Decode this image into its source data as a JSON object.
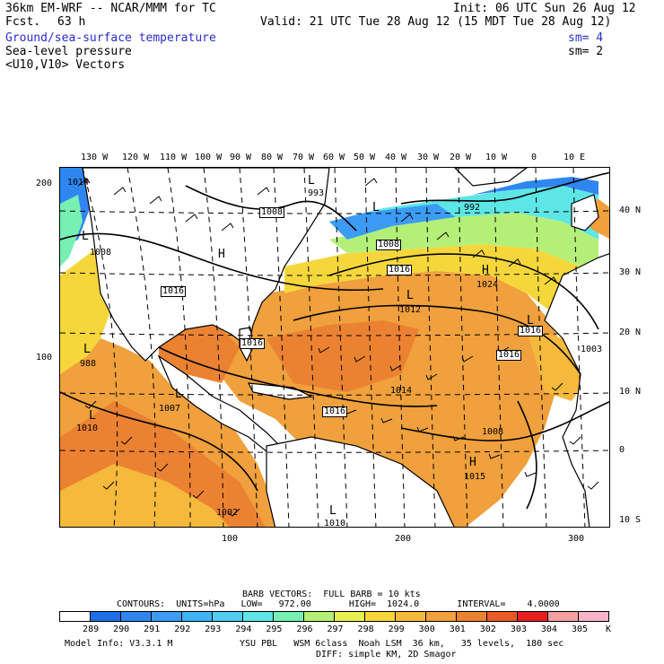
{
  "header": {
    "model": "36km EM-WRF -- NCAR/MMM for TC",
    "fcst_label": "Fcst.",
    "fcst_value": "63 h",
    "init": "Init: 06 UTC Sun 26 Aug 12",
    "valid": "Valid: 21 UTC Tue 28 Aug 12 (15 MDT Tue 28 Aug 12)",
    "fields": [
      {
        "label": "Ground/sea-surface temperature",
        "sm": "sm= 4",
        "color": "#2b2bd0"
      },
      {
        "label": "Sea-level pressure",
        "sm": "sm= 2",
        "color": "#000000"
      },
      {
        "label": "<U10,V10> Vectors",
        "sm": "",
        "color": "#000000"
      }
    ]
  },
  "map": {
    "top_lon_labels": [
      "130 W",
      "120 W",
      "110 W",
      "100 W",
      "90 W",
      "80 W",
      "70 W",
      "60 W",
      "50 W",
      "40 W",
      "30 W",
      "20 W",
      "10 W",
      "0",
      "10 E"
    ],
    "right_lat_labels": [
      "40 N",
      "30 N",
      "20 N",
      "10 N",
      "0",
      "10 S"
    ],
    "left_grid_labels": [
      "200",
      "100"
    ],
    "bottom_grid_labels": [
      "100",
      "200",
      "300"
    ],
    "isobar_labels": [
      "1014",
      "1008",
      "1008",
      "993",
      "992",
      "1016",
      "1008",
      "1016",
      "1024",
      "1012",
      "1016",
      "1016",
      "1016",
      "1003",
      "988",
      "1014",
      "1016",
      "1010",
      "1007",
      "1008",
      "1015",
      "1002",
      "1010"
    ],
    "highs_lows": [
      "L",
      "L",
      "L",
      "H",
      "L",
      "L",
      "L",
      "L",
      "H",
      "H",
      "L",
      "L"
    ]
  },
  "footer": {
    "barb_line": "BARB VECTORS:  FULL BARB = 10 kts",
    "contours_line": "CONTOURS:  UNITS=hPa   LOW=   972.00       HIGH=  1024.0       INTERVAL=    4.0000",
    "colorbar_labels": [
      "289",
      "290",
      "291",
      "292",
      "293",
      "294",
      "295",
      "296",
      "297",
      "298",
      "299",
      "300",
      "301",
      "302",
      "303",
      "304",
      "305"
    ],
    "colorbar_unit": "K",
    "colorbar_colors": [
      "#ffffff",
      "#1e6ee6",
      "#2f86f0",
      "#3c9cf5",
      "#3cb4f5",
      "#50cdf0",
      "#5ee6e6",
      "#78f0b4",
      "#b4f078",
      "#e6f050",
      "#f5d73c",
      "#f5b93c",
      "#f0a03c",
      "#eb8232",
      "#eb5a28",
      "#e61e1e",
      "#f5a0a0",
      "#f5b4c8"
    ],
    "model_info": "Model Info: V3.3.1 M",
    "physics": "YSU PBL   WSM 6class  Noah LSM  36 km,   35 levels,  180 sec",
    "diffusion": "DIFF: simple KM, 2D Smagor"
  }
}
